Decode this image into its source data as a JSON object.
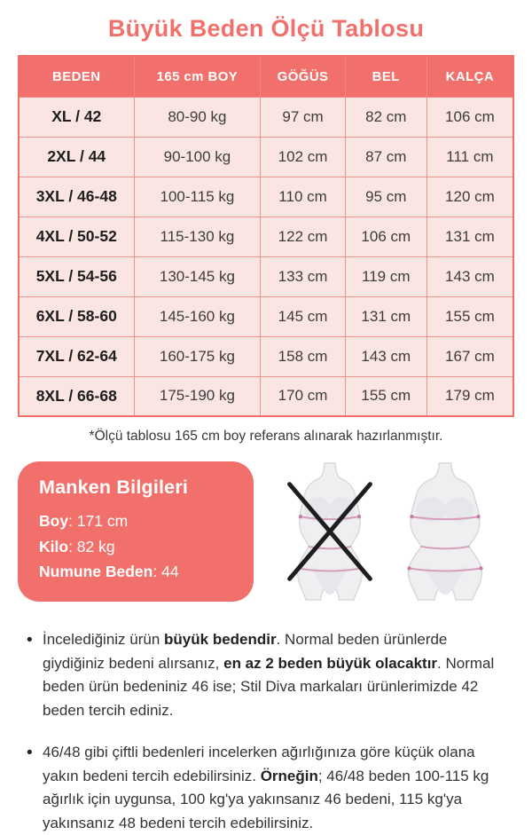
{
  "page": {
    "title": "Büyük Beden Ölçü Tablosu",
    "footnote": "*Ölçü tablosu 165 cm boy referans alınarak hazırlanmıştır."
  },
  "table": {
    "columns": [
      "BEDEN",
      "165 cm BOY",
      "GÖĞÜS",
      "BEL",
      "KALÇA"
    ],
    "rows": [
      [
        "XL / 42",
        "80-90 kg",
        "97 cm",
        "82 cm",
        "106 cm"
      ],
      [
        "2XL / 44",
        "90-100 kg",
        "102 cm",
        "87 cm",
        "111 cm"
      ],
      [
        "3XL / 46-48",
        "100-115 kg",
        "110 cm",
        "95 cm",
        "120 cm"
      ],
      [
        "4XL / 50-52",
        "115-130 kg",
        "122 cm",
        "106 cm",
        "131 cm"
      ],
      [
        "5XL / 54-56",
        "130-145 kg",
        "133 cm",
        "119 cm",
        "143 cm"
      ],
      [
        "6XL / 58-60",
        "145-160 kg",
        "145 cm",
        "131 cm",
        "155 cm"
      ],
      [
        "7XL / 62-64",
        "160-175 kg",
        "158 cm",
        "143 cm",
        "167 cm"
      ],
      [
        "8XL / 66-68",
        "175-190 kg",
        "170 cm",
        "155 cm",
        "179 cm"
      ]
    ]
  },
  "model_info": {
    "title": "Manken Bilgileri",
    "lines": [
      {
        "label": "Boy",
        "value": ": 171 cm"
      },
      {
        "label": "Kilo",
        "value": ": 82 kg"
      },
      {
        "label": "Numune Beden",
        "value": ": 44"
      }
    ]
  },
  "figures": {
    "left_icon": "crossed-out-normal-figure-icon",
    "right_icon": "plus-size-figure-icon"
  },
  "notes": [
    {
      "segments": [
        {
          "text": "İncelediğiniz ürün ",
          "bold": false
        },
        {
          "text": "büyük bedendir",
          "bold": true
        },
        {
          "text": ". Normal beden ürünlerde giydiğiniz bedeni alırsanız, ",
          "bold": false
        },
        {
          "text": "en az 2 beden büyük olacaktır",
          "bold": true
        },
        {
          "text": ". Normal beden ürün bedeniniz 46 ise; Stil Diva markaları ürünlerimizde 42 beden tercih ediniz.",
          "bold": false
        }
      ]
    },
    {
      "segments": [
        {
          "text": "46/48 gibi çiftli bedenleri incelerken ağırlığınıza göre küçük olana yakın bedeni tercih edebilirsiniz. ",
          "bold": false
        },
        {
          "text": "Örneğin",
          "bold": true
        },
        {
          "text": "; 46/48 beden 100-115 kg ağırlık için uygunsa, 100 kg'ya yakınsanız 46 bedeni, 115 kg'ya yakınsanız 48 bedeni tercih edebilirsiniz.",
          "bold": false
        }
      ]
    }
  ],
  "colors": {
    "accent": "#F1706B",
    "row_bg": "#FBE5E3",
    "cell_border": "#F3938E",
    "text": "#3C3C3C",
    "measure": "#D59DB9",
    "cross": "#1E1E1E"
  }
}
